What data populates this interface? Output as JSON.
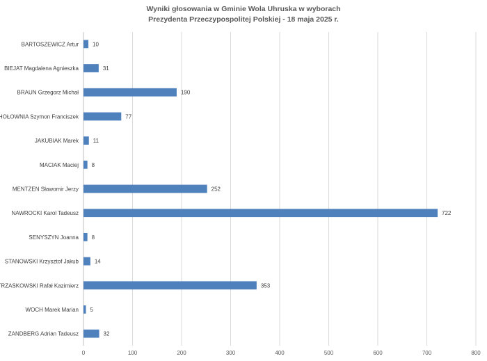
{
  "chart_data": {
    "type": "bar",
    "orientation": "horizontal",
    "title": [
      "Wyniki głosowania w Gminie Wola Uhruska w wyborach",
      "Prezydenta Przeczypospolitej Polskiej - 18 maja 2025 r."
    ],
    "categories": [
      "BARTOSZEWICZ Artur",
      "BIEJAT Magdalena Agnieszka",
      "BRAUN Grzegorz Michał",
      "HOŁOWNIA Szymon Franciszek",
      "JAKUBIAK Marek",
      "MACIAK Maciej",
      "MENTZEN Sławomir Jerzy",
      "NAWROCKI Karol Tadeusz",
      "SENYSZYN Joanna",
      "STANOWSKI Krzysztof Jakub",
      "TRZASKOWSKI Rafał Kazimierz",
      "WOCH Marek Marian",
      "ZANDBERG Adrian Tadeusz"
    ],
    "values": [
      10,
      31,
      190,
      77,
      11,
      8,
      252,
      722,
      8,
      14,
      353,
      5,
      32
    ],
    "xlim": [
      0,
      800
    ],
    "xticks": [
      0,
      100,
      200,
      300,
      400,
      500,
      600,
      700,
      800
    ],
    "grid": true,
    "data_labels": true,
    "legend": "none",
    "bar_color": "#4f81bd"
  }
}
